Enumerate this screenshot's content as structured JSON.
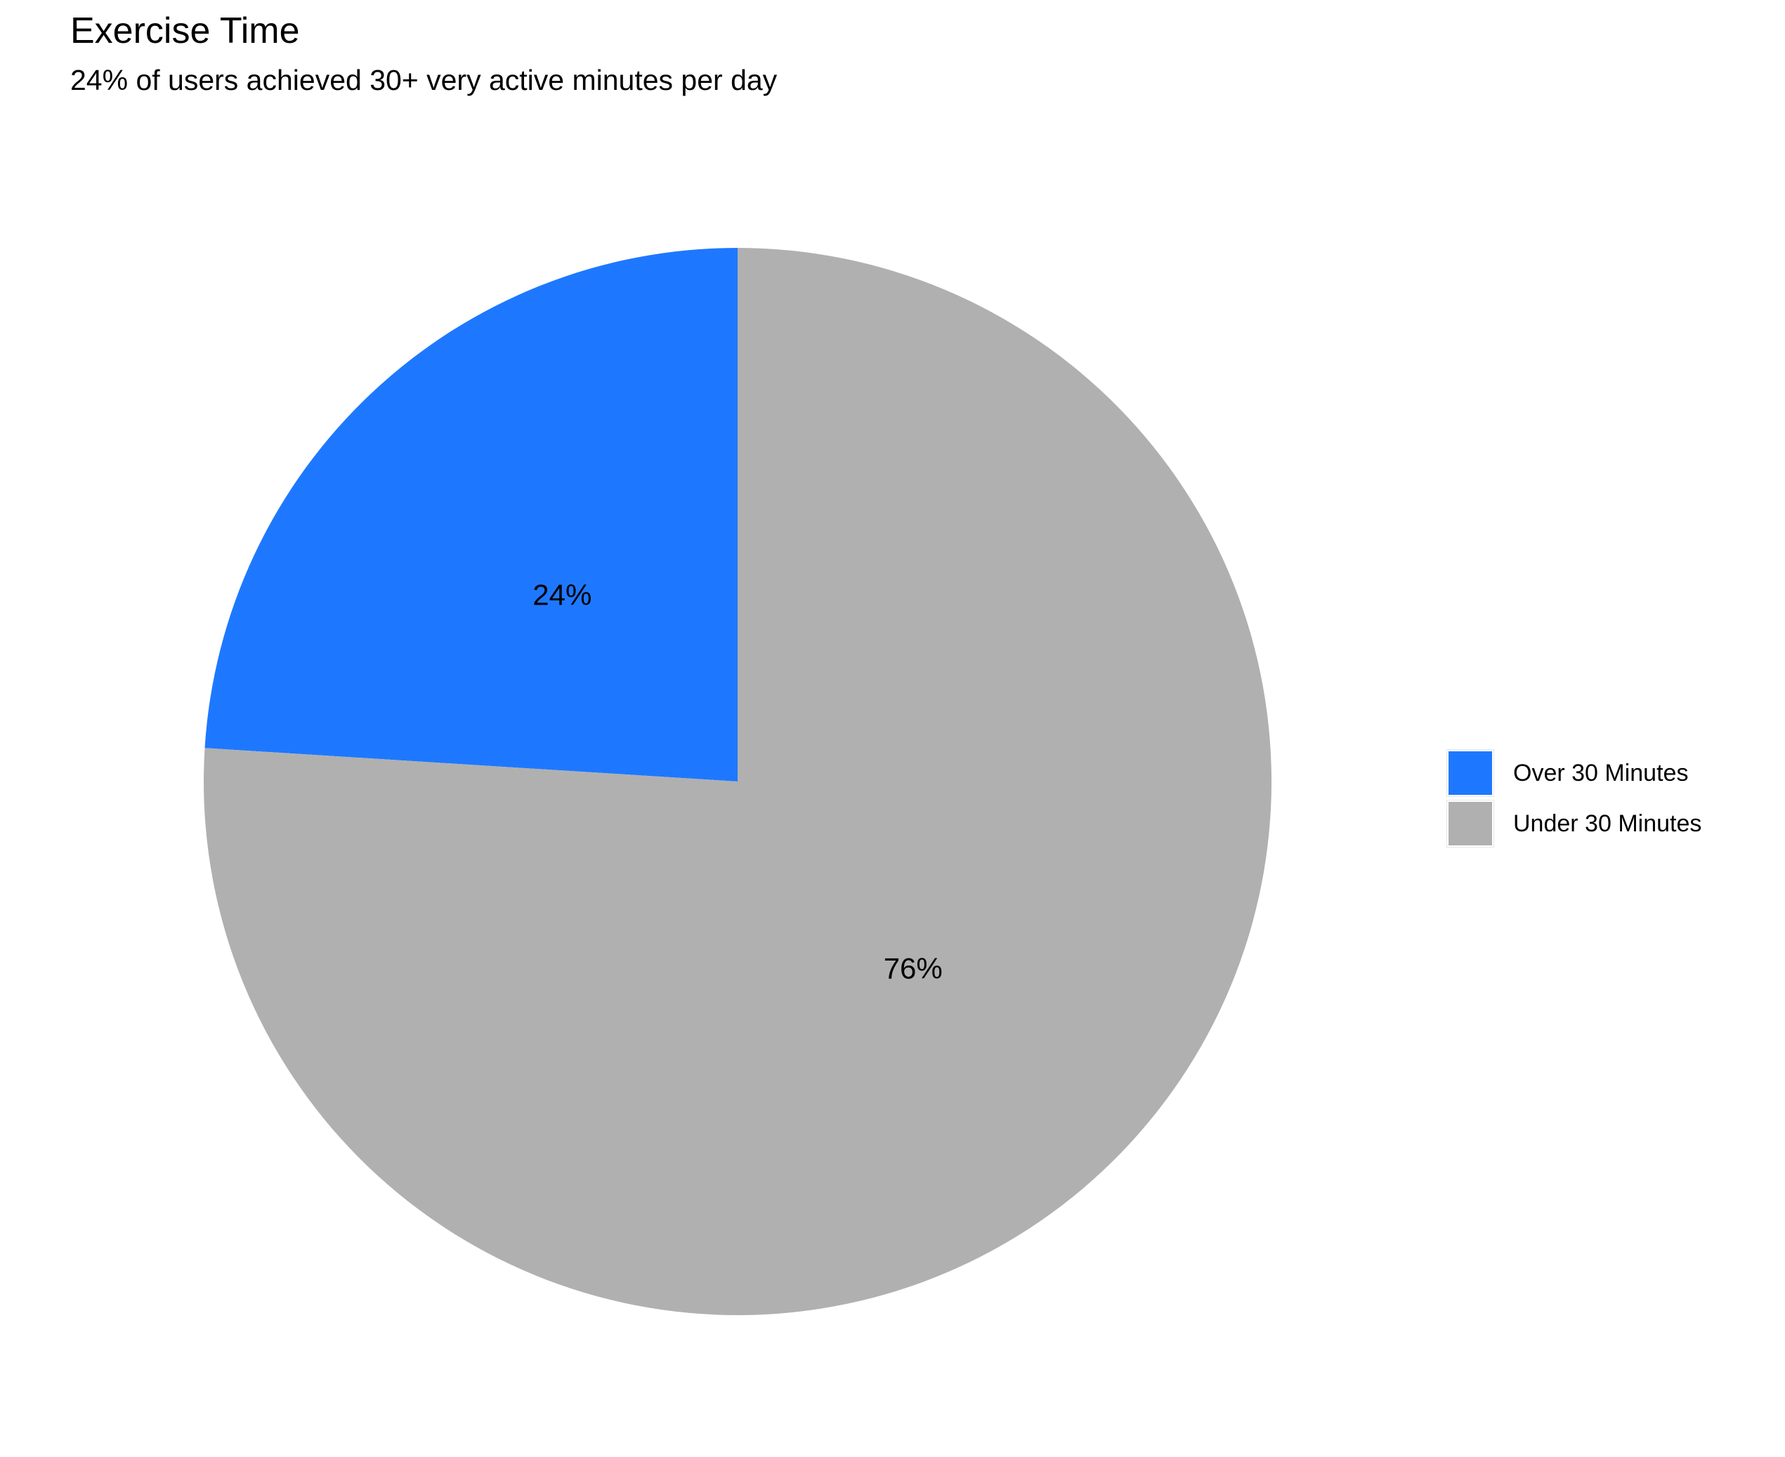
{
  "chart_data": {
    "type": "pie",
    "title": "Exercise Time",
    "subtitle": "24% of users achieved 30+ very active minutes per day",
    "categories": [
      "Over 30 Minutes",
      "Under 30 Minutes"
    ],
    "values": [
      24,
      76
    ],
    "labels": [
      "24%",
      "76%"
    ],
    "colors": [
      "#1e78ff",
      "#b0b0b0"
    ],
    "legend": "right"
  }
}
